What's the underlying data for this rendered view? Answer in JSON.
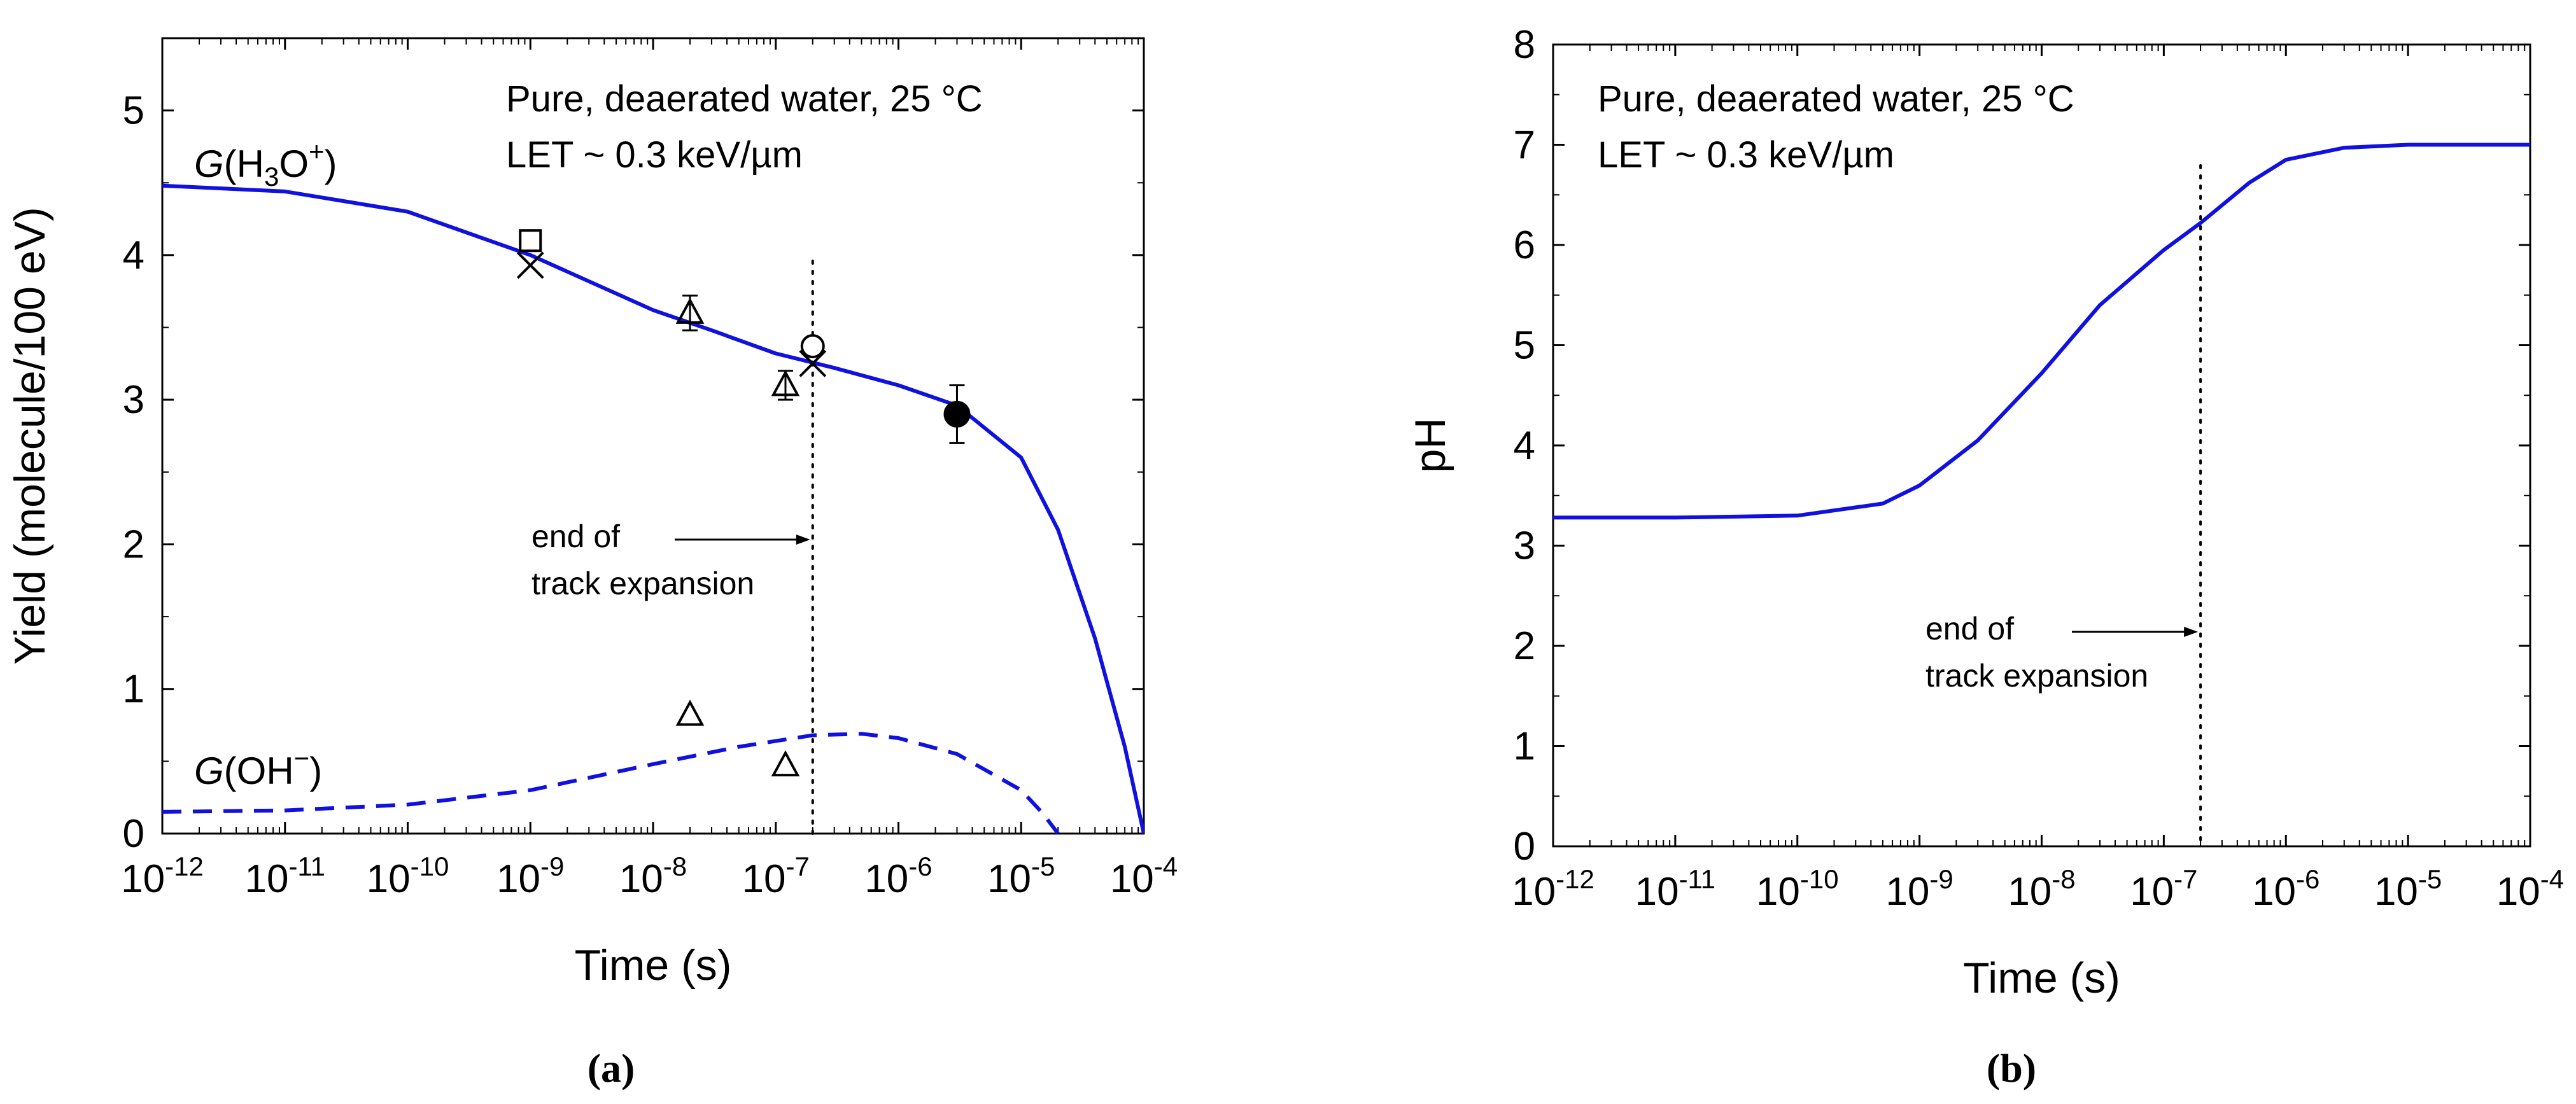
{
  "figure": {
    "panel_a_label": "(a)",
    "panel_b_label": "(b)"
  },
  "chart_data": [
    {
      "panel": "(a)",
      "type": "line",
      "x_scale": "log",
      "xlim": [
        1e-12,
        0.0001
      ],
      "ylim": [
        0,
        5.5
      ],
      "x_ticks": [
        1e-12,
        1e-11,
        1e-10,
        1e-09,
        1e-08,
        1e-07,
        1e-06,
        1e-05,
        0.0001
      ],
      "x_tick_labels": [
        {
          "base": "10",
          "exp": "-12"
        },
        {
          "base": "10",
          "exp": "-11"
        },
        {
          "base": "10",
          "exp": "-10"
        },
        {
          "base": "10",
          "exp": "-9"
        },
        {
          "base": "10",
          "exp": "-8"
        },
        {
          "base": "10",
          "exp": "-7"
        },
        {
          "base": "10",
          "exp": "-6"
        },
        {
          "base": "10",
          "exp": "-5"
        },
        {
          "base": "10",
          "exp": "-4"
        }
      ],
      "y_ticks": [
        0,
        1,
        2,
        3,
        4,
        5
      ],
      "y_minor_step": 0.5,
      "xlabel": "Time (s)",
      "ylabel": "Yield (molecule/100 eV)",
      "annotation": {
        "line1": "Pure, deaerated water, 25 °C",
        "line2": "LET ~ 0.3 keV/µm"
      },
      "track_expansion": {
        "t": 2e-07,
        "label_line1": "end of",
        "label_line2": "track expansion"
      },
      "series": [
        {
          "name": "G(H3O+)",
          "label_g": "G",
          "label_rest": "(H",
          "label_sub": "3",
          "label_mid": "O",
          "label_sup": "+",
          "label_end": ")",
          "style": "solid",
          "color": "#1010e0",
          "points": [
            [
              1e-12,
              4.48
            ],
            [
              1e-11,
              4.44
            ],
            [
              1e-10,
              4.3
            ],
            [
              1e-09,
              4.0
            ],
            [
              1e-08,
              3.62
            ],
            [
              3e-08,
              3.48
            ],
            [
              1e-07,
              3.32
            ],
            [
              3e-07,
              3.22
            ],
            [
              1e-06,
              3.1
            ],
            [
              3e-06,
              2.96
            ],
            [
              1e-05,
              2.6
            ],
            [
              2e-05,
              2.1
            ],
            [
              4e-05,
              1.35
            ],
            [
              7e-05,
              0.6
            ],
            [
              0.0001,
              0.0
            ]
          ]
        },
        {
          "name": "G(OH−)",
          "label_g": "G",
          "label_rest": "(OH",
          "label_sup": "−",
          "label_end": ")",
          "style": "dashed",
          "color": "#1010e0",
          "points": [
            [
              1e-12,
              0.15
            ],
            [
              1e-11,
              0.16
            ],
            [
              1e-10,
              0.2
            ],
            [
              1e-09,
              0.3
            ],
            [
              1e-08,
              0.48
            ],
            [
              5e-08,
              0.6
            ],
            [
              2e-07,
              0.68
            ],
            [
              5e-07,
              0.69
            ],
            [
              1e-06,
              0.66
            ],
            [
              3e-06,
              0.55
            ],
            [
              1e-05,
              0.3
            ],
            [
              1.5e-05,
              0.14
            ],
            [
              2e-05,
              0.0
            ]
          ]
        }
      ],
      "experimental": [
        {
          "marker": "square",
          "x": 1e-09,
          "y": 4.1
        },
        {
          "marker": "cross",
          "x": 1e-09,
          "y": 3.93
        },
        {
          "marker": "triangle",
          "x": 2e-08,
          "y": 3.6,
          "err": 0.12
        },
        {
          "marker": "triangle",
          "x": 1.2e-07,
          "y": 3.1,
          "err": 0.1
        },
        {
          "marker": "circle",
          "x": 2e-07,
          "y": 3.37
        },
        {
          "marker": "cross",
          "x": 2e-07,
          "y": 3.25
        },
        {
          "marker": "filled-circle",
          "x": 3e-06,
          "y": 2.9,
          "err": 0.2
        },
        {
          "marker": "triangle",
          "x": 2e-08,
          "y": 0.82
        },
        {
          "marker": "triangle",
          "x": 1.2e-07,
          "y": 0.47
        }
      ]
    },
    {
      "panel": "(b)",
      "type": "line",
      "x_scale": "log",
      "xlim": [
        1e-12,
        0.0001
      ],
      "ylim": [
        0,
        8
      ],
      "x_ticks": [
        1e-12,
        1e-11,
        1e-10,
        1e-09,
        1e-08,
        1e-07,
        1e-06,
        1e-05,
        0.0001
      ],
      "x_tick_labels": [
        {
          "base": "10",
          "exp": "-12"
        },
        {
          "base": "10",
          "exp": "-11"
        },
        {
          "base": "10",
          "exp": "-10"
        },
        {
          "base": "10",
          "exp": "-9"
        },
        {
          "base": "10",
          "exp": "-8"
        },
        {
          "base": "10",
          "exp": "-7"
        },
        {
          "base": "10",
          "exp": "-6"
        },
        {
          "base": "10",
          "exp": "-5"
        },
        {
          "base": "10",
          "exp": "-4"
        }
      ],
      "y_ticks": [
        0,
        1,
        2,
        3,
        4,
        5,
        6,
        7,
        8
      ],
      "y_minor_step": 0.5,
      "xlabel": "Time (s)",
      "ylabel": "pH",
      "annotation": {
        "line1": "Pure, deaerated water, 25 °C",
        "line2": "LET ~ 0.3 keV/µm"
      },
      "track_expansion": {
        "t": 2e-07,
        "label_line1": "end of",
        "label_line2": "track expansion"
      },
      "series": [
        {
          "name": "pH",
          "style": "solid",
          "color": "#1010e0",
          "points": [
            [
              1e-12,
              3.28
            ],
            [
              1e-11,
              3.28
            ],
            [
              1e-10,
              3.3
            ],
            [
              5e-10,
              3.42
            ],
            [
              1e-09,
              3.6
            ],
            [
              3e-09,
              4.05
            ],
            [
              1e-08,
              4.72
            ],
            [
              3e-08,
              5.4
            ],
            [
              1e-07,
              5.95
            ],
            [
              2e-07,
              6.22
            ],
            [
              5e-07,
              6.62
            ],
            [
              1e-06,
              6.85
            ],
            [
              3e-06,
              6.97
            ],
            [
              1e-05,
              7.0
            ],
            [
              0.0001,
              7.0
            ]
          ]
        }
      ]
    }
  ]
}
